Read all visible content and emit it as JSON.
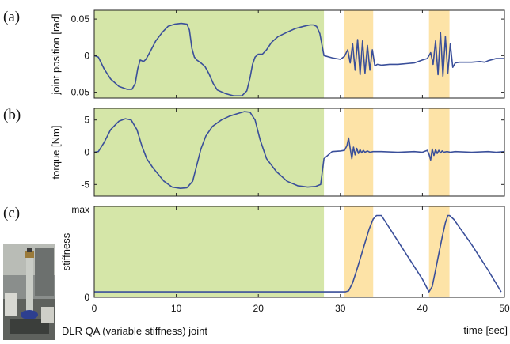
{
  "panels": [
    {
      "letter": "(a)",
      "ylabel": "joint position [rad]",
      "yticks": [
        "0.05",
        "0",
        "-0.05"
      ]
    },
    {
      "letter": "(b)",
      "ylabel": "torque [Nm]",
      "yticks": [
        "5",
        "0",
        "-5"
      ]
    },
    {
      "letter": "(c)",
      "ylabel": "stiffness",
      "yticks": [
        "max",
        "0"
      ]
    }
  ],
  "xticks": [
    "0",
    "10",
    "20",
    "30",
    "40",
    "50"
  ],
  "xlabel": "time [sec]",
  "photo_caption": "DLR QA (variable stiffness) joint",
  "chart_data": {
    "type": "line",
    "x_range": [
      0,
      50
    ],
    "shaded_regions": [
      {
        "x": [
          0,
          28
        ],
        "color": "#d5e6a8"
      },
      {
        "x": [
          30.5,
          34
        ],
        "color": "#fde3a7"
      },
      {
        "x": [
          40.8,
          43.3
        ],
        "color": "#fde3a7"
      }
    ],
    "line_color": "#3a4f9a",
    "panels": [
      {
        "name": "joint position",
        "ylabel": "joint position [rad]",
        "ylim": [
          -0.058,
          0.062
        ],
        "yticks": [
          0.05,
          0,
          -0.05
        ],
        "x": [
          0,
          0.5,
          1.2,
          2,
          3,
          4,
          4.6,
          5,
          5.3,
          5.6,
          6,
          6.3,
          6.8,
          7.5,
          8.3,
          9,
          9.8,
          10.6,
          11.3,
          11.6,
          11.9,
          12.2,
          12.5,
          13,
          13.5,
          14,
          14.5,
          15,
          16,
          17,
          18,
          18.6,
          19,
          19.3,
          19.6,
          20,
          20.5,
          21,
          21.6,
          22.4,
          23.5,
          24.5,
          25.5,
          26.3,
          26.7,
          27.1,
          27.5,
          28,
          29,
          30,
          30.5,
          30.9,
          31.2,
          31.5,
          31.8,
          32.1,
          32.4,
          32.7,
          33,
          33.3,
          33.6,
          33.9,
          34.2,
          34.5,
          35,
          36,
          37,
          38,
          39,
          40,
          40.6,
          41,
          41.3,
          41.6,
          41.9,
          42.2,
          42.5,
          42.8,
          43.1,
          43.4,
          43.7,
          44,
          44.5,
          45,
          46,
          47,
          47.6,
          48,
          49,
          50
        ],
        "y": [
          0,
          -0.002,
          -0.018,
          -0.032,
          -0.042,
          -0.046,
          -0.046,
          -0.038,
          -0.018,
          -0.006,
          -0.008,
          -0.005,
          0.005,
          0.02,
          0.032,
          0.04,
          0.043,
          0.044,
          0.043,
          0.035,
          0.01,
          -0.002,
          -0.006,
          -0.01,
          -0.015,
          -0.025,
          -0.038,
          -0.047,
          -0.052,
          -0.055,
          -0.055,
          -0.048,
          -0.03,
          -0.012,
          -0.002,
          0.002,
          0.002,
          0.008,
          0.018,
          0.026,
          0.032,
          0.037,
          0.04,
          0.042,
          0.042,
          0.04,
          0.03,
          0,
          -0.003,
          -0.005,
          -0.001,
          0.008,
          -0.01,
          0.016,
          -0.02,
          0.022,
          -0.026,
          0.02,
          -0.024,
          0.014,
          -0.02,
          0.008,
          -0.014,
          -0.012,
          -0.013,
          -0.012,
          -0.012,
          -0.011,
          -0.01,
          -0.006,
          -0.004,
          0.004,
          -0.012,
          0.02,
          -0.026,
          0.032,
          -0.028,
          0.026,
          -0.024,
          0.016,
          -0.016,
          -0.01,
          -0.009,
          -0.009,
          -0.009,
          -0.008,
          -0.009,
          -0.007,
          -0.004,
          -0.004
        ]
      },
      {
        "name": "torque",
        "ylabel": "torque [Nm]",
        "ylim": [
          -6.8,
          6.8
        ],
        "yticks": [
          5,
          0,
          -5
        ],
        "x": [
          0,
          0.5,
          1.2,
          2,
          3,
          3.8,
          4.5,
          5.2,
          5.8,
          6.4,
          7.2,
          8.5,
          9.5,
          10.5,
          11.3,
          12,
          12.5,
          13,
          13.6,
          14.4,
          15.5,
          16.5,
          17.5,
          18.3,
          19,
          19.6,
          20.2,
          21,
          22.2,
          23.5,
          24.8,
          26,
          27,
          27.6,
          28,
          29,
          30,
          30.5,
          30.8,
          31,
          31.2,
          31.4,
          31.6,
          31.8,
          32,
          32.2,
          32.4,
          32.6,
          32.8,
          33,
          33.3,
          33.6,
          34,
          35,
          37,
          39,
          40,
          40.6,
          40.8,
          41,
          41.2,
          41.4,
          41.6,
          41.8,
          42,
          42.2,
          42.4,
          42.6,
          43,
          43.4,
          44,
          46,
          48,
          49,
          50
        ],
        "y": [
          0,
          0.1,
          1.5,
          3.5,
          4.8,
          5.2,
          5,
          3.5,
          1,
          -1,
          -2.5,
          -4.5,
          -5.4,
          -5.6,
          -5.5,
          -4.5,
          -2,
          0.5,
          2.5,
          4,
          5,
          5.6,
          6,
          6.3,
          6.2,
          5,
          2,
          -1,
          -3,
          -4.5,
          -5.2,
          -5.4,
          -5.3,
          -5,
          -1,
          0.1,
          0.2,
          0.3,
          1,
          2.2,
          0.6,
          -1,
          0.8,
          -0.4,
          0.6,
          -0.2,
          0.4,
          -0.1,
          0.3,
          0,
          0.2,
          0,
          0.1,
          0.1,
          0,
          0.1,
          0,
          0.3,
          -0.3,
          -1.2,
          0.5,
          -0.5,
          0.4,
          -0.2,
          0.3,
          -0.1,
          0.2,
          0,
          0.1,
          0,
          0.1,
          0,
          0.1,
          0,
          0.1
        ]
      },
      {
        "name": "stiffness",
        "ylabel": "stiffness",
        "ylim": [
          0,
          1
        ],
        "yticks": [
          "max",
          "0"
        ],
        "x": [
          0,
          28,
          30.6,
          31,
          31.5,
          32,
          32.5,
          33,
          33.5,
          34,
          34.4,
          35,
          37,
          39,
          40,
          40.8,
          41.2,
          41.6,
          42,
          42.4,
          42.8,
          43.1,
          43.3,
          43.8,
          46,
          48,
          49.6
        ],
        "y": [
          0.06,
          0.06,
          0.06,
          0.07,
          0.16,
          0.3,
          0.45,
          0.6,
          0.75,
          0.86,
          0.9,
          0.9,
          0.62,
          0.34,
          0.2,
          0.06,
          0.12,
          0.3,
          0.48,
          0.66,
          0.82,
          0.9,
          0.9,
          0.86,
          0.58,
          0.3,
          0.06
        ]
      }
    ]
  }
}
